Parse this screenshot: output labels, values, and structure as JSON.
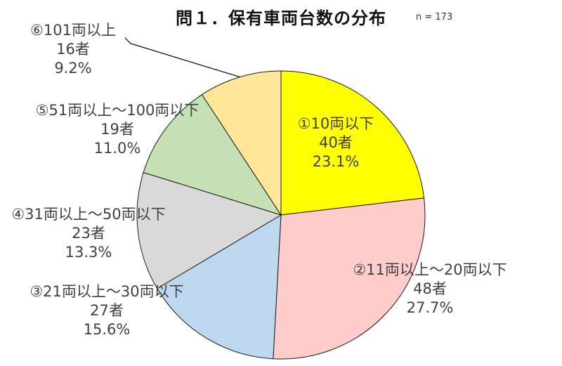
{
  "title": "問１．保有車両台数の分布",
  "sample_size": "n = 173",
  "chart_data": {
    "type": "pie",
    "title": "問１．保有車両台数の分布",
    "n": 173,
    "start": "12 o'clock",
    "direction": "clockwise",
    "slices": [
      {
        "label": "①10両以下",
        "count": 40,
        "count_text": "40者",
        "percent": 23.1,
        "percent_text": "23.1%",
        "color": "#FFFF00"
      },
      {
        "label": "②11両以上～20両以下",
        "count": 48,
        "count_text": "48者",
        "percent": 27.7,
        "percent_text": "27.7%",
        "color": "#FFCCCC"
      },
      {
        "label": "③21両以上～30両以下",
        "count": 27,
        "count_text": "27者",
        "percent": 15.6,
        "percent_text": "15.6%",
        "color": "#BDD7EE"
      },
      {
        "label": "④31両以上～50両以下",
        "count": 23,
        "count_text": "23者",
        "percent": 13.3,
        "percent_text": "13.3%",
        "color": "#D9D9D9"
      },
      {
        "label": "⑤51両以上～100両以下",
        "count": 19,
        "count_text": "19者",
        "percent": 11.0,
        "percent_text": "11.0%",
        "color": "#C5E0B4"
      },
      {
        "label": "⑥101両以上",
        "count": 16,
        "count_text": "16者",
        "percent": 9.2,
        "percent_text": "9.2%",
        "color": "#FFE699"
      }
    ]
  }
}
